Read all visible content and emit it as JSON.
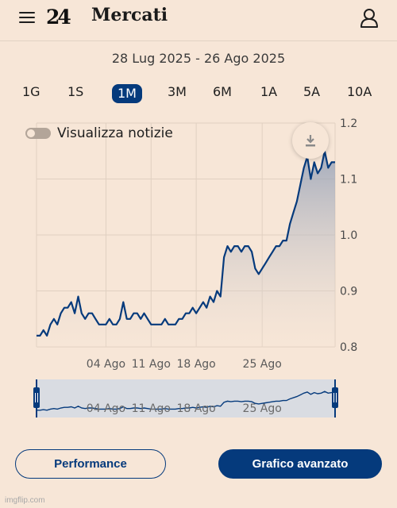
{
  "header": {
    "menu_icon": "hamburger-icon",
    "logo_text": "24",
    "title": "Mercati",
    "user_icon": "user-icon"
  },
  "date_range": "28 Lug 2025 - 26 Ago 2025",
  "periods": [
    {
      "label": "1G",
      "active": false
    },
    {
      "label": "1S",
      "active": false
    },
    {
      "label": "1M",
      "active": true
    },
    {
      "label": "3M",
      "active": false
    },
    {
      "label": "6M",
      "active": false
    },
    {
      "label": "1A",
      "active": false
    },
    {
      "label": "5A",
      "active": false
    },
    {
      "label": "10A",
      "active": false
    }
  ],
  "news_toggle": {
    "label": "Visualizza notizie",
    "on": false
  },
  "download_icon": "download-icon",
  "colors": {
    "background": "#f7e6d7",
    "line": "#053a7c",
    "accent": "#053a7c",
    "grid": "#e0d0c1"
  },
  "chart_data": {
    "type": "area",
    "x_ticks": [
      "04 Ago",
      "11 Ago",
      "18 Ago",
      "25 Ago"
    ],
    "y_ticks": [
      "1.2",
      "1.1",
      "1.0",
      "0.9",
      "0.8"
    ],
    "ylim": [
      0.8,
      1.2
    ],
    "grid": true,
    "values": [
      0.82,
      0.82,
      0.83,
      0.82,
      0.84,
      0.85,
      0.84,
      0.86,
      0.87,
      0.87,
      0.88,
      0.86,
      0.89,
      0.86,
      0.85,
      0.86,
      0.86,
      0.85,
      0.84,
      0.84,
      0.84,
      0.85,
      0.84,
      0.84,
      0.85,
      0.88,
      0.85,
      0.85,
      0.86,
      0.86,
      0.85,
      0.86,
      0.85,
      0.84,
      0.84,
      0.84,
      0.84,
      0.85,
      0.84,
      0.84,
      0.84,
      0.85,
      0.85,
      0.86,
      0.86,
      0.87,
      0.86,
      0.87,
      0.88,
      0.87,
      0.89,
      0.88,
      0.9,
      0.89,
      0.96,
      0.98,
      0.97,
      0.98,
      0.98,
      0.97,
      0.98,
      0.98,
      0.97,
      0.94,
      0.93,
      0.94,
      0.95,
      0.96,
      0.97,
      0.98,
      0.98,
      0.99,
      0.99,
      1.02,
      1.04,
      1.06,
      1.09,
      1.12,
      1.14,
      1.1,
      1.13,
      1.11,
      1.12,
      1.15,
      1.12,
      1.13,
      1.13
    ],
    "x_tick_positions_index": [
      20,
      33,
      46,
      65
    ]
  },
  "navigator": {
    "labels": [
      "04 Ago",
      "11 Ago",
      "18 Ago",
      "25 Ago"
    ]
  },
  "buttons": {
    "performance": "Performance",
    "advanced": "Grafico avanzato"
  },
  "watermark": "imgflip.com"
}
